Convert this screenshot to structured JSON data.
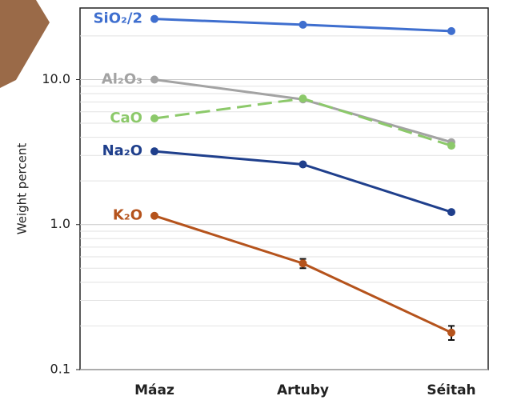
{
  "chart_data": {
    "type": "line",
    "ylabel": "Weight percent",
    "log_scale": true,
    "grid": true,
    "categories": [
      "Máaz",
      "Artuby",
      "Séitah"
    ],
    "ylim": [
      0.1,
      30
    ],
    "yticks": [
      {
        "value": 10,
        "label": "10.0"
      },
      {
        "value": 1,
        "label": "1.0"
      },
      0.1
    ],
    "series": [
      {
        "name": "SiO₂/2",
        "color": "#3f6fcf",
        "values": [
          26.2,
          23.9,
          21.6
        ]
      },
      {
        "name": "Al₂O₃",
        "color": "#a3a3a3",
        "values": [
          10.0,
          7.3,
          3.7
        ]
      },
      {
        "name": "CaO",
        "color": "#8cc96a",
        "dashed": true,
        "values": [
          5.4,
          7.4,
          3.5
        ]
      },
      {
        "name": "Na₂O",
        "color": "#1f3f8c",
        "values": [
          3.2,
          2.6,
          1.22
        ]
      },
      {
        "name": "K₂O",
        "color": "#b5531c",
        "values": [
          1.15,
          0.54,
          0.18
        ],
        "errors": [
          null,
          0.04,
          0.02
        ]
      }
    ]
  }
}
